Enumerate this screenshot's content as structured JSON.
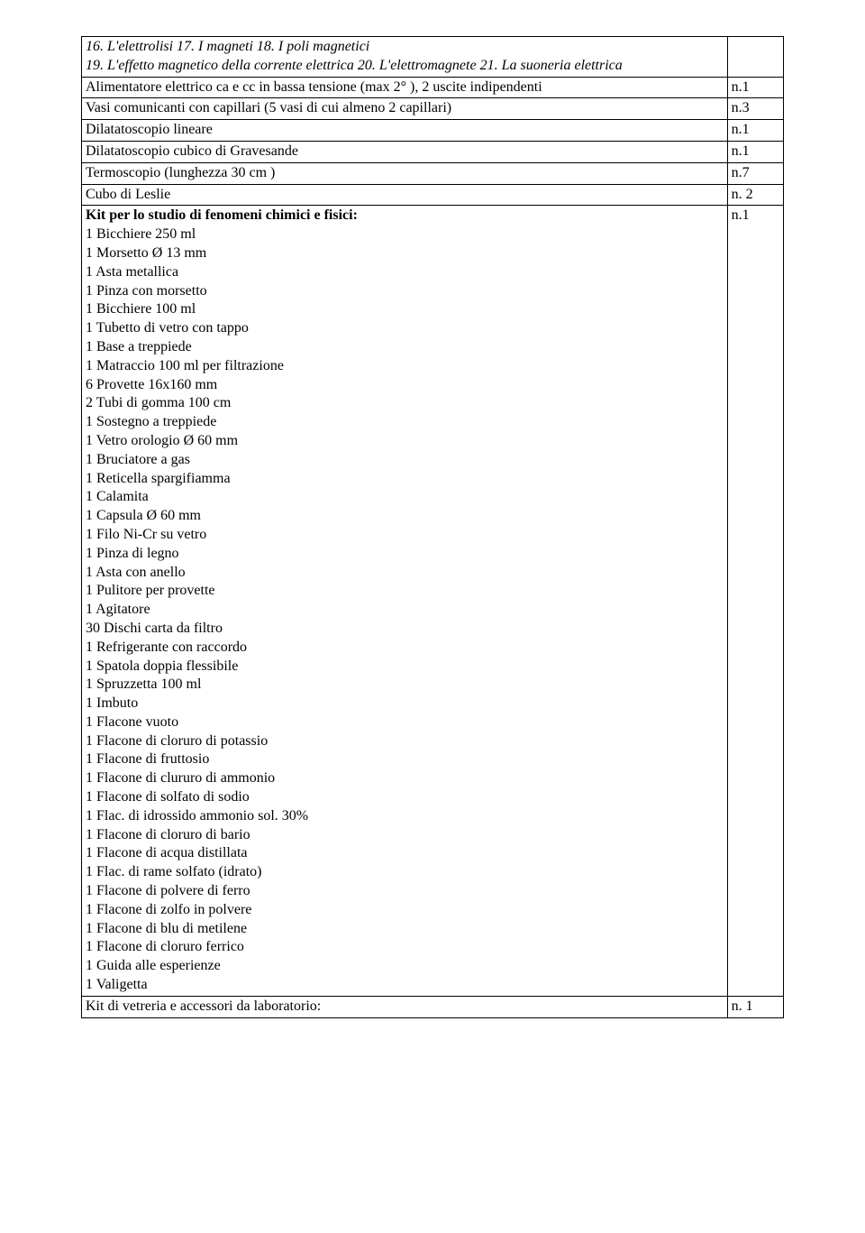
{
  "toprow": {
    "desc_lines": [
      {
        "text": "16. L'elettrolisi 17. I magneti 18. I poli magnetici",
        "italic": true
      },
      {
        "text": "19. L'effetto magnetico della corrente elettrica 20. L'elettromagnete 21. La suoneria elettrica",
        "italic": true
      }
    ],
    "qty": ""
  },
  "rows": [
    {
      "desc": "Alimentatore elettrico ca e cc in bassa tensione (max 2° ), 2 uscite indipendenti",
      "qty": "n.1"
    },
    {
      "desc": "Vasi comunicanti con capillari (5 vasi di cui almeno 2 capillari)",
      "qty": "n.3"
    },
    {
      "desc": "Dilatatoscopio lineare",
      "qty": "n.1"
    },
    {
      "desc": "Dilatatoscopio cubico di Gravesande",
      "qty": "n.1"
    },
    {
      "desc": "Termoscopio (lunghezza 30 cm )",
      "qty": "n.7"
    },
    {
      "desc": "Cubo di Leslie",
      "qty": "n. 2"
    }
  ],
  "kitrow": {
    "title": "Kit per lo studio di fenomeni chimici e fisici:",
    "items": [
      "1 Bicchiere 250 ml",
      "1 Morsetto Ø 13 mm",
      "1 Asta metallica",
      "1 Pinza con morsetto",
      "1 Bicchiere 100 ml",
      "1 Tubetto di vetro con tappo",
      "1 Base a treppiede",
      "1 Matraccio 100 ml per filtrazione",
      "6 Provette 16x160 mm",
      "2 Tubi di gomma 100 cm",
      "1 Sostegno a treppiede",
      "1 Vetro orologio Ø 60 mm",
      "1 Bruciatore a gas",
      "1 Reticella spargifiamma",
      "1 Calamita",
      "1 Capsula Ø 60 mm",
      "1 Filo Ni-Cr su vetro",
      "1 Pinza di legno",
      "1 Asta con anello",
      "1 Pulitore per provette",
      "1 Agitatore",
      "30 Dischi carta da filtro",
      "1 Refrigerante con raccordo",
      "1 Spatola doppia flessibile",
      "1 Spruzzetta 100 ml",
      "1 Imbuto",
      "1 Flacone vuoto",
      "1 Flacone di cloruro di potassio",
      "1 Flacone di fruttosio",
      "1 Flacone di clururo di ammonio",
      "1 Flacone di solfato di sodio",
      "1 Flac. di idrossido ammonio sol. 30%",
      "1 Flacone di cloruro di bario",
      "1 Flacone di acqua distillata",
      "1 Flac. di rame solfato (idrato)",
      "1 Flacone di polvere di ferro",
      "1 Flacone di zolfo in polvere",
      "1 Flacone di blu di metilene",
      "1 Flacone di cloruro ferrico",
      "1 Guida alle esperienze",
      "1 Valigetta"
    ],
    "qty": "n.1"
  },
  "lastrow": {
    "desc": "Kit di vetreria e accessori da laboratorio:",
    "qty": "n. 1"
  }
}
